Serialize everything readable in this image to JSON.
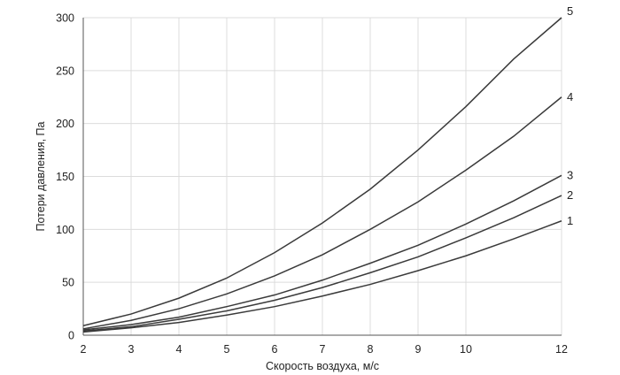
{
  "chart_data": {
    "type": "line",
    "title": "",
    "xlabel": "Скорость воздуха, м/с",
    "ylabel": "Потери давления, Па",
    "xlim": [
      2,
      12
    ],
    "ylim": [
      0,
      300
    ],
    "grid": true,
    "x_ticks": [
      2,
      3,
      4,
      5,
      6,
      7,
      8,
      9,
      10,
      12
    ],
    "y_ticks": [
      0,
      50,
      100,
      150,
      200,
      250,
      300
    ],
    "x": [
      2,
      3,
      4,
      5,
      6,
      7,
      8,
      9,
      10,
      11,
      12
    ],
    "line_color": "#3a3a3a",
    "series": [
      {
        "name": "1",
        "values": [
          3,
          7,
          12,
          19,
          27,
          37,
          48,
          61,
          75,
          91,
          108
        ]
      },
      {
        "name": "2",
        "values": [
          4,
          8,
          15,
          23,
          33,
          45,
          59,
          74,
          92,
          111,
          132
        ]
      },
      {
        "name": "3",
        "values": [
          5,
          10,
          17,
          27,
          38,
          52,
          68,
          85,
          105,
          127,
          151
        ]
      },
      {
        "name": "4",
        "values": [
          6,
          14,
          25,
          39,
          56,
          76,
          100,
          126,
          156,
          188,
          225
        ]
      },
      {
        "name": "5",
        "values": [
          9,
          20,
          35,
          54,
          78,
          106,
          138,
          175,
          216,
          261,
          300
        ]
      }
    ]
  }
}
